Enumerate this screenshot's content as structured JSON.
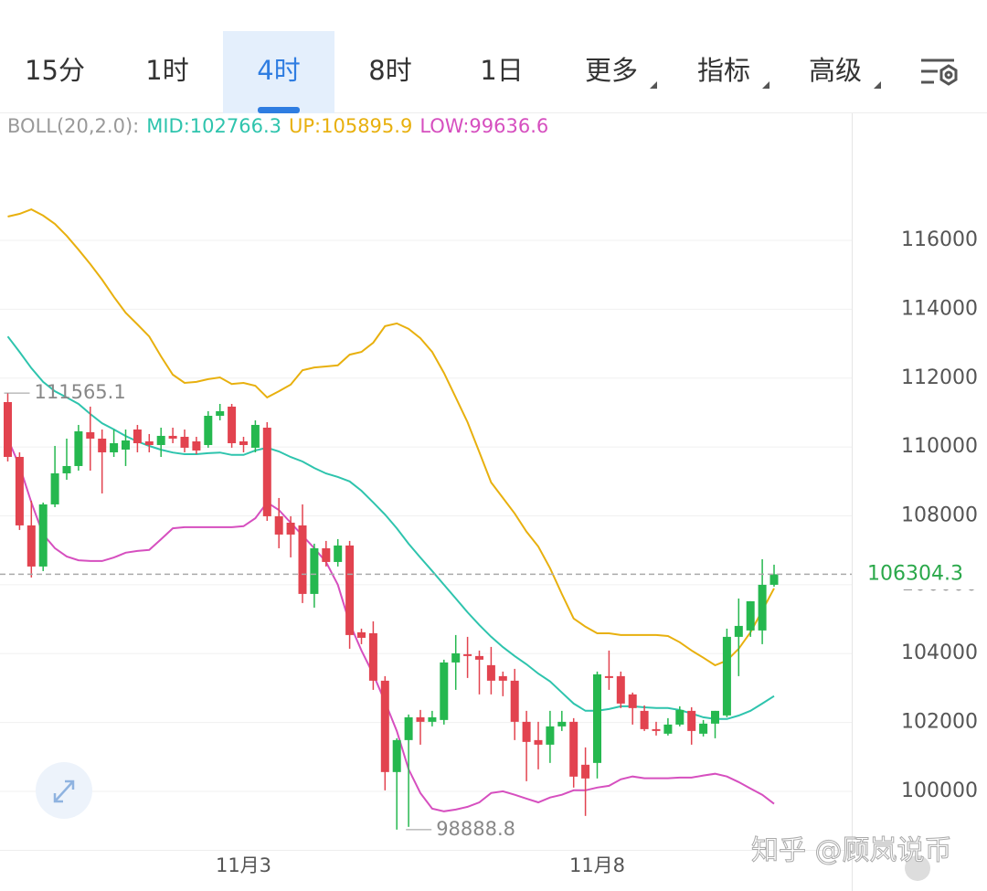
{
  "tabs": [
    "15分",
    "1时",
    "4时",
    "8时",
    "1日"
  ],
  "dropdown_tabs": [
    "更多",
    "指标",
    "高级"
  ],
  "active_tab": "4时",
  "watermark": "知乎 @顾岚说币",
  "chart_data": {
    "type": "candlestick",
    "indicator": "BOLL(20,2.0):",
    "categories": [
      null,
      null,
      null,
      null,
      null,
      null,
      null,
      null,
      null,
      null,
      null,
      null,
      null,
      null,
      null,
      null,
      null,
      null,
      null,
      null,
      "11月3",
      null,
      null,
      null,
      null,
      null,
      null,
      null,
      null,
      null,
      null,
      null,
      null,
      null,
      null,
      null,
      null,
      null,
      null,
      null,
      null,
      null,
      null,
      null,
      null,
      null,
      null,
      null,
      null,
      null,
      "11月8",
      null,
      null,
      null,
      null,
      null,
      null,
      null,
      null,
      null,
      null,
      null,
      null,
      null,
      null,
      null
    ],
    "open": [
      111304,
      109712,
      107723,
      106529,
      108333,
      109235,
      109447,
      110429,
      110243,
      109845,
      109925,
      110508,
      110163,
      110057,
      110323,
      110296,
      110163,
      110057,
      110906,
      111172,
      110163,
      109978,
      110561,
      107988,
      107802,
      107723,
      105733,
      107059,
      106661,
      107139,
      104619,
      104592,
      103213,
      100560,
      101488,
      102151,
      102019,
      102072,
      103743,
      103982,
      103929,
      103664,
      103345,
      103213,
      102019,
      101488,
      101355,
      101886,
      102019,
      100772,
      100825,
      103345,
      103345,
      102815,
      102337,
      101806,
      101674,
      101939,
      102337,
      101674,
      101966,
      102204,
      104486,
      104672,
      104672,
      105998
    ],
    "high": [
      111565.1,
      109845,
      108439,
      108386,
      110031,
      110243,
      110641,
      111172,
      110508,
      110508,
      110508,
      110641,
      110376,
      110561,
      110561,
      110508,
      110296,
      111039,
      111251,
      111251,
      110296,
      110774,
      110721,
      108519,
      107988,
      108333,
      107192,
      107272,
      107325,
      107272,
      104725,
      104937,
      103345,
      101541,
      102231,
      102364,
      102337,
      103823,
      104539,
      104486,
      104088,
      104194,
      103478,
      103557,
      102337,
      102019,
      102337,
      102337,
      102125,
      101276,
      103478,
      104088,
      103478,
      102868,
      102496,
      102019,
      102125,
      102470,
      102443,
      102072,
      102337,
      104725,
      105600,
      105521,
      106741,
      106582
    ],
    "low": [
      109580,
      107590,
      106210,
      106396,
      108253,
      109049,
      109314,
      109314,
      108651,
      109712,
      109447,
      109845,
      109845,
      109712,
      110110,
      109845,
      109792,
      109978,
      110774,
      109978,
      109845,
      109845,
      107855,
      107059,
      106794,
      105468,
      105335,
      106529,
      106529,
      104141,
      104274,
      102947,
      100029,
      98888.8,
      98968,
      101355,
      101886,
      101939,
      102947,
      103292,
      102815,
      102815,
      102762,
      101488,
      100294,
      100639,
      100825,
      101753,
      100109,
      99286,
      100374,
      102947,
      102417,
      101939,
      101753,
      101621,
      101621,
      101886,
      101355,
      101594,
      101541,
      102151,
      103345,
      104486,
      104274,
      105945
    ],
    "close": [
      109712,
      107723,
      106529,
      108333,
      109235,
      109447,
      110455,
      110243,
      109845,
      110110,
      110190,
      110110,
      110057,
      110323,
      110243,
      109978,
      109898,
      110906,
      111039,
      110110,
      110057,
      110641,
      107988,
      107457,
      107457,
      105733,
      107059,
      106661,
      107139,
      104539,
      104459,
      103213,
      100560,
      101488,
      102151,
      102019,
      102151,
      103743,
      104008,
      103929,
      103823,
      103213,
      103213,
      102019,
      101435,
      101355,
      101886,
      102019,
      100427,
      100374,
      103398,
      103292,
      102549,
      102417,
      101806,
      101753,
      101939,
      102364,
      101753,
      101966,
      102337,
      104486,
      104804,
      105521,
      105998,
      106304.3
    ],
    "up_color": "#25b84f",
    "down_color": "#e2434f",
    "overlays": [
      {
        "name": "MID:",
        "color": "#2ec4ad",
        "values": [
          113210,
          112760,
          112290,
          111890,
          111620,
          111440,
          111250,
          110960,
          110690,
          110510,
          110320,
          110160,
          110030,
          109920,
          109840,
          109790,
          109790,
          109820,
          109840,
          109770,
          109770,
          109900,
          109980,
          109870,
          109710,
          109580,
          109390,
          109230,
          109130,
          109000,
          108730,
          108390,
          108040,
          107640,
          107190,
          106790,
          106400,
          106000,
          105600,
          105200,
          104830,
          104490,
          104190,
          103930,
          103690,
          103420,
          103190,
          102870,
          102550,
          102340,
          102340,
          102390,
          102470,
          102470,
          102440,
          102420,
          102420,
          102360,
          102260,
          102150,
          102100,
          102100,
          102200,
          102340,
          102550,
          102766.3
        ]
      },
      {
        "name": "UP:",
        "color": "#e8b00e",
        "values": [
          116690,
          116770,
          116900,
          116720,
          116480,
          116130,
          115730,
          115310,
          114860,
          114360,
          113900,
          113560,
          113210,
          112630,
          112100,
          111860,
          111890,
          111970,
          112020,
          111830,
          111860,
          111780,
          111440,
          111620,
          111810,
          112230,
          112310,
          112340,
          112370,
          112680,
          112760,
          113030,
          113510,
          113590,
          113430,
          113160,
          112760,
          112150,
          111440,
          110720,
          109850,
          108970,
          108520,
          108070,
          107540,
          107110,
          106480,
          105730,
          105020,
          104780,
          104590,
          104590,
          104540,
          104540,
          104540,
          104540,
          104510,
          104330,
          104090,
          103880,
          103660,
          103800,
          104140,
          104620,
          105250,
          105895.9
        ]
      },
      {
        "name": "LOW:",
        "color": "#d64fbf",
        "values": [
          110240,
          109450,
          108390,
          107460,
          107060,
          106820,
          106710,
          106690,
          106690,
          106790,
          106930,
          106980,
          107010,
          107320,
          107640,
          107670,
          107670,
          107670,
          107670,
          107670,
          107700,
          107930,
          108390,
          108170,
          107800,
          107430,
          107060,
          106660,
          106000,
          104880,
          104090,
          103400,
          102600,
          101750,
          100640,
          99950,
          99500,
          99420,
          99470,
          99550,
          99680,
          99950,
          100000,
          99900,
          99790,
          99680,
          99820,
          99900,
          100030,
          100030,
          100110,
          100160,
          100350,
          100430,
          100380,
          100380,
          100380,
          100400,
          100400,
          100460,
          100510,
          100430,
          100270,
          100080,
          99900,
          99636.6
        ]
      }
    ],
    "ylim": [
      98300,
      119690
    ],
    "yticks": [
      100000,
      102000,
      104000,
      106000,
      108000,
      110000,
      112000,
      114000,
      116000
    ],
    "grid": true
  }
}
